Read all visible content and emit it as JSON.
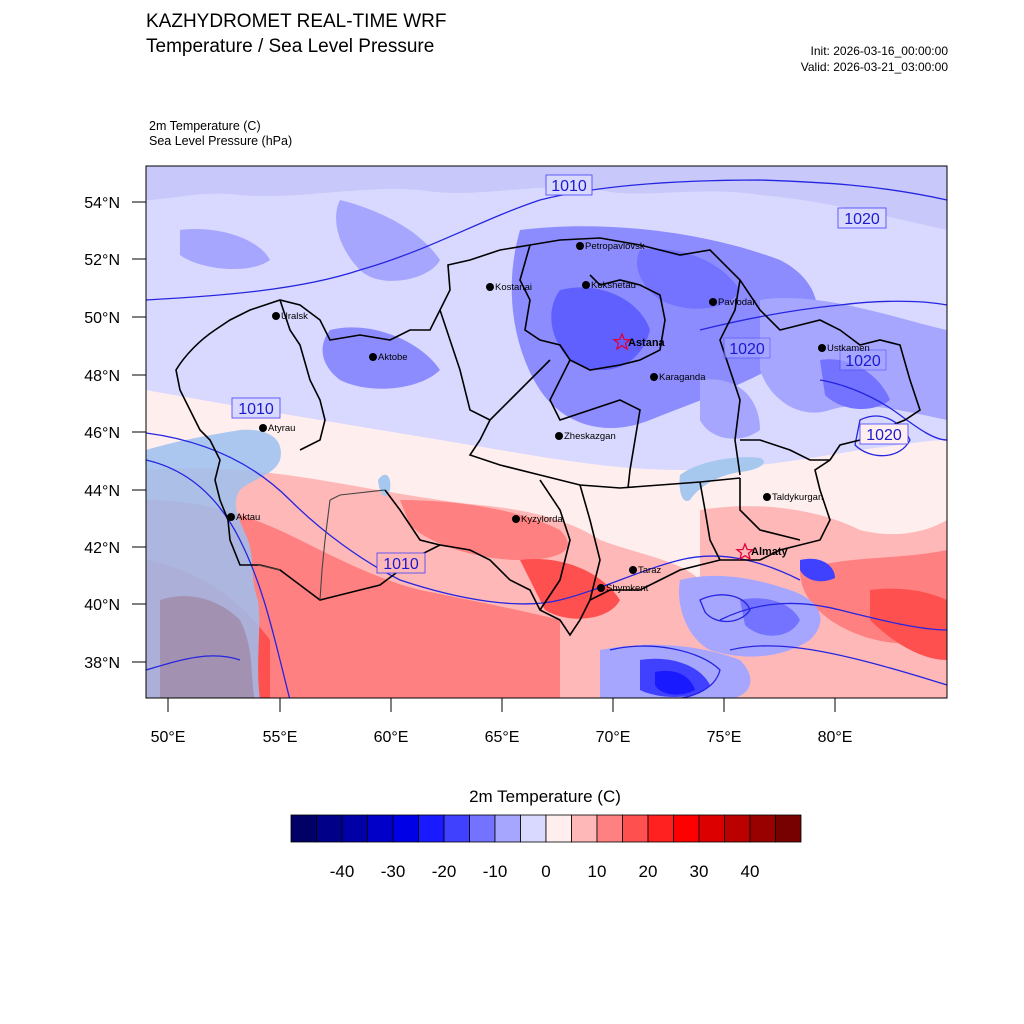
{
  "header": {
    "title": "KAZHYDROMET REAL-TIME WRF",
    "subtitle": "Temperature / Sea Level Pressure",
    "init": "Init: 2026-03-16_00:00:00",
    "valid": "Valid: 2026-03-21_03:00:00"
  },
  "variables": {
    "primary": "2m Temperature   (C)",
    "secondary": "Sea Level Pressure   (hPa)"
  },
  "map": {
    "lat_labels": [
      "54°N",
      "52°N",
      "50°N",
      "48°N",
      "46°N",
      "44°N",
      "42°N",
      "40°N",
      "38°N"
    ],
    "lon_labels": [
      "50°E",
      "55°E",
      "60°E",
      "65°E",
      "70°E",
      "75°E",
      "80°E"
    ],
    "cities": [
      {
        "name": "Petropavlovsk",
        "capital": false
      },
      {
        "name": "Kostanai",
        "capital": false
      },
      {
        "name": "Kokshetau",
        "capital": false
      },
      {
        "name": "Pavlodar",
        "capital": false
      },
      {
        "name": "Uralsk",
        "capital": false
      },
      {
        "name": "Astana",
        "capital": true
      },
      {
        "name": "Aktobe",
        "capital": false
      },
      {
        "name": "Ustkamen",
        "capital": false
      },
      {
        "name": "Karaganda",
        "capital": false
      },
      {
        "name": "Atyrau",
        "capital": false
      },
      {
        "name": "Zheskazgan",
        "capital": false
      },
      {
        "name": "Taldykurgan",
        "capital": false
      },
      {
        "name": "Aktau",
        "capital": false
      },
      {
        "name": "Kyzylorda",
        "capital": false
      },
      {
        "name": "Almaty",
        "capital": true
      },
      {
        "name": "Taraz",
        "capital": false
      },
      {
        "name": "Shymkent",
        "capital": false
      }
    ],
    "isobar_labels": [
      "1010",
      "1020",
      "1020",
      "1020",
      "1020",
      "1010",
      "1010"
    ]
  },
  "colorbar": {
    "title": "2m Temperature  (C)",
    "ticks": [
      "-40",
      "-30",
      "-20",
      "-10",
      "0",
      "10",
      "20",
      "30",
      "40"
    ],
    "colors": [
      "#000066",
      "#000088",
      "#0000a6",
      "#0000c8",
      "#0000e6",
      "#1a1aff",
      "#4040ff",
      "#7373ff",
      "#a6a6ff",
      "#d9d9ff",
      "#ffeeee",
      "#ffb8b8",
      "#ff8080",
      "#ff5050",
      "#ff2020",
      "#ff0000",
      "#dd0000",
      "#bb0000",
      "#990000",
      "#770000"
    ]
  }
}
